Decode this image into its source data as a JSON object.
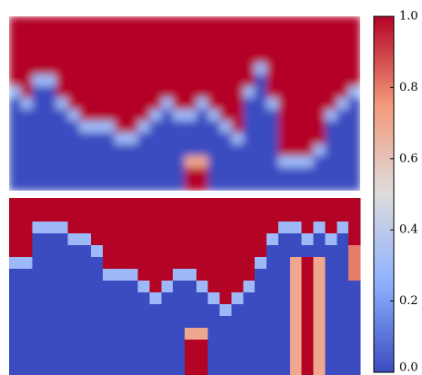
{
  "chart_data": [
    {
      "type": "heatmap",
      "interpolation": "smooth",
      "values": [
        [
          1,
          1,
          1,
          1,
          1,
          1,
          1,
          1,
          1,
          1,
          1,
          1,
          1,
          1,
          1,
          1,
          1,
          1,
          1,
          1,
          1,
          1,
          1,
          1,
          1,
          1,
          1,
          1,
          1,
          1
        ],
        [
          1,
          1,
          1,
          1,
          1,
          1,
          1,
          1,
          1,
          1,
          1,
          1,
          1,
          1,
          1,
          1,
          1,
          1,
          1,
          1,
          1,
          1,
          1,
          1,
          1,
          1,
          1,
          1,
          1,
          1
        ],
        [
          1,
          1,
          1,
          1,
          1,
          1,
          1,
          1,
          1,
          1,
          1,
          1,
          1,
          1,
          1,
          1,
          1,
          1,
          1,
          1,
          1,
          1,
          1,
          1,
          1,
          1,
          1,
          1,
          1,
          1
        ],
        [
          1,
          1,
          1,
          1,
          1,
          1,
          1,
          1,
          1,
          1,
          1,
          1,
          1,
          1,
          1,
          1,
          1,
          1,
          1,
          1,
          1,
          1,
          1,
          1,
          1,
          1,
          1,
          1,
          1,
          1
        ],
        [
          1,
          1,
          1,
          1,
          1,
          1,
          1,
          1,
          1,
          1,
          1,
          1,
          1,
          1,
          1,
          1,
          1,
          1,
          1,
          1,
          1,
          0.3,
          1,
          1,
          1,
          1,
          1,
          1,
          1,
          1
        ],
        [
          1,
          1,
          0.3,
          0.3,
          1,
          1,
          1,
          1,
          1,
          1,
          1,
          1,
          1,
          1,
          1,
          1,
          1,
          1,
          1,
          1,
          1,
          0,
          1,
          1,
          1,
          1,
          1,
          1,
          1,
          1
        ],
        [
          0.3,
          1,
          0,
          0,
          1,
          1,
          1,
          1,
          1,
          1,
          1,
          1,
          1,
          1,
          1,
          1,
          1,
          1,
          1,
          1,
          0.3,
          0,
          1,
          1,
          1,
          1,
          1,
          1,
          1,
          0.3
        ],
        [
          0,
          0.3,
          0,
          0,
          0.3,
          1,
          1,
          1,
          1,
          1,
          1,
          1,
          1,
          0.3,
          1,
          1,
          0.3,
          1,
          1,
          1,
          0,
          0,
          0.3,
          1,
          1,
          1,
          1,
          1,
          0.3,
          0
        ],
        [
          0,
          0,
          0,
          0,
          0,
          0.3,
          1,
          1,
          1,
          1,
          1,
          1,
          0.3,
          0,
          0.3,
          0.3,
          0,
          0.3,
          1,
          1,
          0,
          0,
          0,
          1,
          1,
          1,
          1,
          0.3,
          0,
          0
        ],
        [
          0,
          0,
          0,
          0,
          0,
          0,
          0.3,
          0.3,
          0.3,
          1,
          1,
          0.3,
          0,
          0,
          0,
          0,
          0,
          0,
          0.3,
          1,
          0,
          0,
          0,
          1,
          1,
          1,
          1,
          0,
          0,
          0
        ],
        [
          0,
          0,
          0,
          0,
          0,
          0,
          0,
          0,
          0,
          0.3,
          0.3,
          0,
          0,
          0,
          0,
          0,
          0,
          0,
          0,
          0.3,
          0,
          0,
          0,
          1,
          1,
          1,
          1,
          0,
          0,
          0
        ],
        [
          0,
          0,
          0,
          0,
          0,
          0,
          0,
          0,
          0,
          0,
          0,
          0,
          0,
          0,
          0,
          0,
          0,
          0,
          0,
          0,
          0,
          0,
          0,
          1,
          1,
          1,
          0.3,
          0,
          0,
          0
        ],
        [
          0,
          0,
          0,
          0,
          0,
          0,
          0,
          0,
          0,
          0,
          0,
          0,
          0,
          0,
          0,
          0.7,
          0.7,
          0,
          0,
          0,
          0,
          0,
          0,
          0.3,
          0.3,
          0.3,
          0,
          0,
          0,
          0
        ],
        [
          0,
          0,
          0,
          0,
          0,
          0,
          0,
          0,
          0,
          0,
          0,
          0,
          0,
          0,
          0,
          1,
          1,
          0,
          0,
          0,
          0,
          0,
          0,
          0,
          0,
          0,
          0,
          0,
          0,
          0
        ],
        [
          0,
          0,
          0,
          0,
          0,
          0,
          0,
          0,
          0,
          0,
          0,
          0,
          0,
          0,
          0,
          1,
          1,
          0,
          0,
          0,
          0,
          0,
          0,
          0,
          0,
          0,
          0,
          0,
          0,
          0
        ]
      ]
    },
    {
      "type": "heatmap",
      "interpolation": "nearest",
      "values": [
        [
          1,
          1,
          1,
          1,
          1,
          1,
          1,
          1,
          1,
          1,
          1,
          1,
          1,
          1,
          1,
          1,
          1,
          1,
          1,
          1,
          1,
          1,
          1,
          1,
          1,
          1,
          1,
          1,
          1,
          1
        ],
        [
          1,
          1,
          1,
          1,
          1,
          1,
          1,
          1,
          1,
          1,
          1,
          1,
          1,
          1,
          1,
          1,
          1,
          1,
          1,
          1,
          1,
          1,
          1,
          1,
          1,
          1,
          1,
          1,
          1,
          1
        ],
        [
          1,
          1,
          0.3,
          0.3,
          0.3,
          1,
          1,
          1,
          1,
          1,
          1,
          1,
          1,
          1,
          1,
          1,
          1,
          1,
          1,
          1,
          1,
          1,
          1,
          0.3,
          0.3,
          1,
          0.3,
          1,
          0.3,
          1
        ],
        [
          1,
          1,
          0,
          0,
          0,
          0.3,
          0.3,
          1,
          1,
          1,
          1,
          1,
          1,
          1,
          1,
          1,
          1,
          1,
          1,
          1,
          1,
          1,
          0.3,
          0,
          0,
          0.3,
          0,
          0.3,
          0,
          1
        ],
        [
          1,
          1,
          0,
          0,
          0,
          0,
          0,
          0.3,
          1,
          1,
          1,
          1,
          1,
          1,
          1,
          1,
          1,
          1,
          1,
          1,
          1,
          1,
          0,
          0,
          0,
          0,
          0,
          0,
          0,
          0.8
        ],
        [
          0.3,
          0.3,
          0,
          0,
          0,
          0,
          0,
          0,
          1,
          1,
          1,
          1,
          1,
          1,
          1,
          1,
          1,
          1,
          1,
          1,
          1,
          0.3,
          0,
          0,
          0.7,
          1,
          0.7,
          0,
          0,
          0.8
        ],
        [
          0,
          0,
          0,
          0,
          0,
          0,
          0,
          0,
          0.3,
          0.3,
          0.3,
          1,
          1,
          1,
          0.3,
          0.3,
          1,
          1,
          1,
          1,
          1,
          0,
          0,
          0,
          0.7,
          1,
          0.7,
          0,
          0,
          0.8
        ],
        [
          0,
          0,
          0,
          0,
          0,
          0,
          0,
          0,
          0,
          0,
          0,
          0.3,
          1,
          0.3,
          0,
          0,
          0.3,
          1,
          1,
          1,
          0.3,
          0,
          0,
          0,
          0.7,
          1,
          0.7,
          0,
          0,
          0
        ],
        [
          0,
          0,
          0,
          0,
          0,
          0,
          0,
          0,
          0,
          0,
          0,
          0,
          0.3,
          0,
          0,
          0,
          0,
          0.3,
          1,
          0.3,
          0,
          0,
          0,
          0,
          0.7,
          1,
          0.7,
          0,
          0,
          0
        ],
        [
          0,
          0,
          0,
          0,
          0,
          0,
          0,
          0,
          0,
          0,
          0,
          0,
          0,
          0,
          0,
          0,
          0,
          0,
          0.3,
          0,
          0,
          0,
          0,
          0,
          0.7,
          1,
          0.7,
          0,
          0,
          0
        ],
        [
          0,
          0,
          0,
          0,
          0,
          0,
          0,
          0,
          0,
          0,
          0,
          0,
          0,
          0,
          0,
          0,
          0,
          0,
          0,
          0,
          0,
          0,
          0,
          0,
          0.7,
          1,
          0.7,
          0,
          0,
          0
        ],
        [
          0,
          0,
          0,
          0,
          0,
          0,
          0,
          0,
          0,
          0,
          0,
          0,
          0,
          0,
          0,
          0.7,
          0.7,
          0,
          0,
          0,
          0,
          0,
          0,
          0,
          0.7,
          1,
          0.7,
          0,
          0,
          0
        ],
        [
          0,
          0,
          0,
          0,
          0,
          0,
          0,
          0,
          0,
          0,
          0,
          0,
          0,
          0,
          0,
          1,
          1,
          0,
          0,
          0,
          0,
          0,
          0,
          0,
          0.7,
          1,
          0.7,
          0,
          0,
          0
        ],
        [
          0,
          0,
          0,
          0,
          0,
          0,
          0,
          0,
          0,
          0,
          0,
          0,
          0,
          0,
          0,
          1,
          1,
          0,
          0,
          0,
          0,
          0,
          0,
          0,
          0.7,
          1,
          0.7,
          0,
          0,
          0
        ],
        [
          0,
          0,
          0,
          0,
          0,
          0,
          0,
          0,
          0,
          0,
          0,
          0,
          0,
          0,
          0,
          1,
          1,
          0,
          0,
          0,
          0,
          0,
          0,
          0,
          0.7,
          1,
          0.7,
          0,
          0,
          0
        ]
      ]
    }
  ],
  "colorbar": {
    "colormap": "coolwarm",
    "clim": [
      0,
      1
    ],
    "ticks": [
      {
        "value": 0,
        "label": "0.0"
      },
      0.2,
      0.4,
      0.6,
      0.8,
      {
        "value": 1,
        "label": "1.0"
      }
    ]
  }
}
